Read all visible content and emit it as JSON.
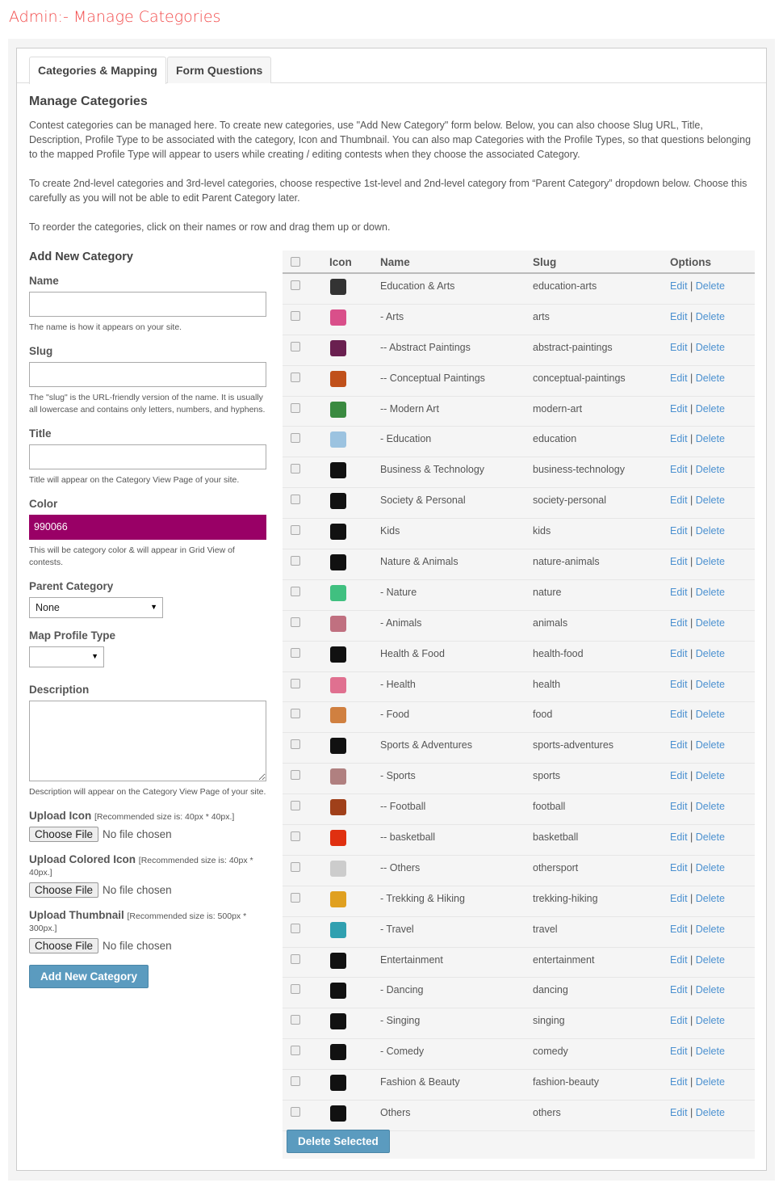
{
  "page_title": "Admin:- Manage Categories",
  "tabs": [
    {
      "label": "Categories & Mapping",
      "active": true
    },
    {
      "label": "Form Questions",
      "active": false
    }
  ],
  "heading": "Manage Categories",
  "intro": [
    "Contest categories can be managed here. To create new categories, use \"Add New Category\" form below. Below, you can also choose Slug URL, Title, Description, Profile Type to be associated with the category, Icon and Thumbnail. You can also map Categories with the Profile Types, so that questions belonging to the mapped Profile Type will appear to users while creating / editing contests when they choose the associated Category.",
    "To create 2nd-level categories and 3rd-level categories, choose respective 1st-level and 2nd-level category from “Parent Category” dropdown below. Choose this carefully as you will not be able to edit Parent Category later.",
    "To reorder the categories, click on their names or row and drag them up or down."
  ],
  "form": {
    "heading": "Add New Category",
    "name_label": "Name",
    "name_value": "",
    "name_hint": "The name is how it appears on your site.",
    "slug_label": "Slug",
    "slug_value": "",
    "slug_hint": "The \"slug\" is the URL-friendly version of the name. It is usually all lowercase and contains only letters, numbers, and hyphens.",
    "title_label": "Title",
    "title_value": "",
    "title_hint": "Title will appear on the Category View Page of your site.",
    "color_label": "Color",
    "color_value": "990066",
    "color_hint": "This will be category color & will appear in Grid View of contests.",
    "parent_label": "Parent Category",
    "parent_value": "None",
    "profile_label": "Map Profile Type",
    "profile_value": "",
    "desc_label": "Description",
    "desc_value": "",
    "desc_hint": "Description will appear on the Category View Page of your site.",
    "uploads": [
      {
        "label": "Upload Icon",
        "note": "[Recommended size is: 40px * 40px.]"
      },
      {
        "label": "Upload Colored Icon",
        "note": "[Recommended size is: 40px * 40px.]"
      },
      {
        "label": "Upload Thumbnail",
        "note": "[Recommended size is: 500px * 300px.]"
      }
    ],
    "choose_file": "Choose File",
    "no_file": "No file chosen",
    "submit": "Add New Category"
  },
  "table": {
    "headers": {
      "icon": "Icon",
      "name": "Name",
      "slug": "Slug",
      "options": "Options"
    },
    "edit": "Edit",
    "sep": "|",
    "delete": "Delete",
    "rows": [
      {
        "name": "Education & Arts",
        "slug": "education-arts",
        "icon": "books-icon",
        "color": "#333333"
      },
      {
        "name": "- Arts",
        "slug": "arts",
        "icon": "paint-dots-icon",
        "color": "#d94f8a"
      },
      {
        "name": "-- Abstract Paintings",
        "slug": "abstract-paintings",
        "icon": "abstract-painting-thumb",
        "color": "#6a2050"
      },
      {
        "name": "-- Conceptual Paintings",
        "slug": "conceptual-paintings",
        "icon": "conceptual-painting-thumb",
        "color": "#c0501a"
      },
      {
        "name": "-- Modern Art",
        "slug": "modern-art",
        "icon": "modern-art-thumb",
        "color": "#3a8a40"
      },
      {
        "name": "- Education",
        "slug": "education",
        "icon": "education-icon",
        "color": "#9cc3e0"
      },
      {
        "name": "Business & Technology",
        "slug": "business-technology",
        "icon": "briefcase-icon",
        "color": "#111111"
      },
      {
        "name": "Society & Personal",
        "slug": "society-personal",
        "icon": "person-icon",
        "color": "#111111"
      },
      {
        "name": "Kids",
        "slug": "kids",
        "icon": "kid-icon",
        "color": "#111111"
      },
      {
        "name": "Nature & Animals",
        "slug": "nature-animals",
        "icon": "mountain-icon",
        "color": "#111111"
      },
      {
        "name": "- Nature",
        "slug": "nature",
        "icon": "nature-globe-icon",
        "color": "#40c080"
      },
      {
        "name": "- Animals",
        "slug": "animals",
        "icon": "animals-icon",
        "color": "#c07080"
      },
      {
        "name": "Health & Food",
        "slug": "health-food",
        "icon": "cloche-icon",
        "color": "#111111"
      },
      {
        "name": "- Health",
        "slug": "health",
        "icon": "heart-hand-icon",
        "color": "#e07090"
      },
      {
        "name": "- Food",
        "slug": "food",
        "icon": "food-dots-icon",
        "color": "#d08040"
      },
      {
        "name": "Sports & Adventures",
        "slug": "sports-adventures",
        "icon": "football-icon",
        "color": "#111111"
      },
      {
        "name": "- Sports",
        "slug": "sports",
        "icon": "sports-icon",
        "color": "#b08080"
      },
      {
        "name": "-- Football",
        "slug": "football",
        "icon": "american-football-icon",
        "color": "#a0401a"
      },
      {
        "name": "-- basketball",
        "slug": "basketball",
        "icon": "basketball-icon",
        "color": "#e03010"
      },
      {
        "name": "-- Others",
        "slug": "othersport",
        "icon": "others-sport-icon",
        "color": "#cccccc"
      },
      {
        "name": "- Trekking & Hiking",
        "slug": "trekking-hiking",
        "icon": "hiker-icon",
        "color": "#e0a020"
      },
      {
        "name": "- Travel",
        "slug": "travel",
        "icon": "globe-icon",
        "color": "#30a0b0"
      },
      {
        "name": "Entertainment",
        "slug": "entertainment",
        "icon": "masks-icon",
        "color": "#111111"
      },
      {
        "name": "- Dancing",
        "slug": "dancing",
        "icon": "dancer-icon",
        "color": "#111111"
      },
      {
        "name": "- Singing",
        "slug": "singing",
        "icon": "singer-icon",
        "color": "#111111"
      },
      {
        "name": "- Comedy",
        "slug": "comedy",
        "icon": "comedy-icon",
        "color": "#111111"
      },
      {
        "name": "Fashion & Beauty",
        "slug": "fashion-beauty",
        "icon": "dress-icon",
        "color": "#111111"
      },
      {
        "name": "Others",
        "slug": "others",
        "icon": "ellipsis-icon",
        "color": "#111111"
      }
    ],
    "delete_selected": "Delete Selected"
  },
  "colors": {
    "title": "#f24a4a",
    "link": "#4a90d0",
    "button": "#5b9bbf",
    "category_color": "#990066"
  }
}
